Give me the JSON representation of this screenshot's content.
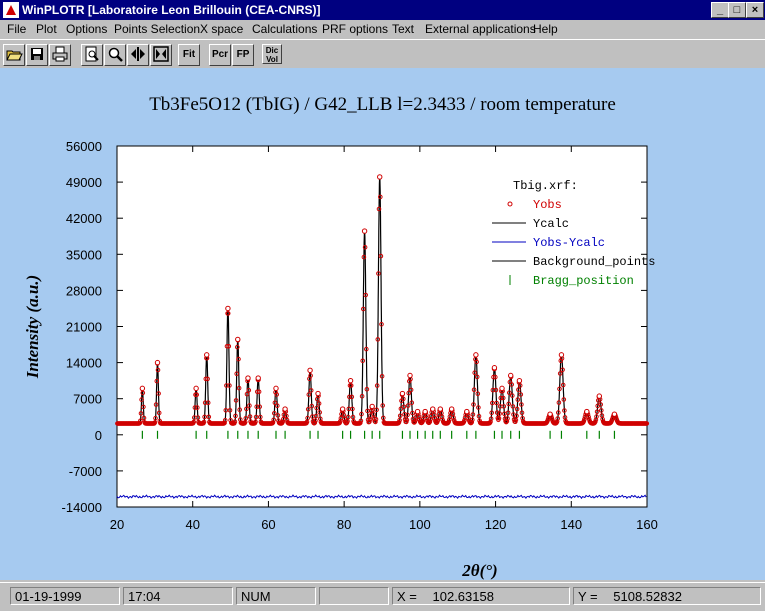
{
  "window": {
    "title": "WinPLOTR [Laboratoire Leon Brillouin (CEA-CNRS)]"
  },
  "menu": [
    "File",
    "Plot",
    "Options",
    "Points Selection",
    "X space",
    "Calculations",
    "PRF options",
    "Text",
    "External applications",
    "Help"
  ],
  "toolbar": {
    "buttons": [
      {
        "name": "open-icon",
        "label": ""
      },
      {
        "name": "save-icon",
        "label": ""
      },
      {
        "name": "print-icon",
        "label": ""
      },
      {
        "name": "zoom-page-icon",
        "label": ""
      },
      {
        "name": "zoom-icon",
        "label": ""
      },
      {
        "name": "move-horizontal-icon",
        "label": ""
      },
      {
        "name": "fit-window-icon",
        "label": ""
      },
      {
        "name": "fit-button",
        "label": "Fit"
      },
      {
        "name": "pcr-button",
        "label": "Pcr"
      },
      {
        "name": "fp-button",
        "label": "FP"
      },
      {
        "name": "dic-vol-button",
        "label": "Dic Vol"
      }
    ]
  },
  "colors": {
    "obs": "#d00000",
    "calc": "#000000",
    "diff": "#0000c0",
    "bragg": "#008000",
    "background": "#a6caf0"
  },
  "chart_data": {
    "type": "scatter",
    "title": "Tb3Fe5O12 (TbIG) / G42_LLB l=2.3433 / room temperature",
    "xlabel": "2θ(°)",
    "ylabel": "Intensity (a.u.)",
    "xlim": [
      20,
      160
    ],
    "ylim": [
      -14000,
      56000
    ],
    "xticks": [
      20,
      40,
      60,
      80,
      100,
      120,
      140,
      160
    ],
    "yticks": [
      56000,
      49000,
      42000,
      35000,
      28000,
      21000,
      14000,
      7000,
      0,
      -7000,
      -14000
    ],
    "legend": {
      "title": "Tbig.xrf:",
      "placement": "top-right",
      "entries": [
        {
          "label": "Yobs",
          "color": "#d00000",
          "marker": "circle"
        },
        {
          "label": "Ycalc",
          "color": "#000000",
          "marker": "line"
        },
        {
          "label": "Yobs-Ycalc",
          "color": "#0000c0",
          "marker": "line"
        },
        {
          "label": "Background_points",
          "color": "#000000",
          "marker": "line"
        },
        {
          "label": "Bragg_position",
          "color": "#008000",
          "marker": "tick"
        }
      ]
    },
    "background": 2200,
    "diff_offset": -12000,
    "bragg_row_y": 0,
    "peaks": [
      {
        "x": 26.7,
        "y": 9000
      },
      {
        "x": 30.7,
        "y": 14000
      },
      {
        "x": 40.9,
        "y": 9000
      },
      {
        "x": 43.7,
        "y": 15500
      },
      {
        "x": 49.3,
        "y": 24500
      },
      {
        "x": 51.9,
        "y": 18500
      },
      {
        "x": 54.6,
        "y": 11000
      },
      {
        "x": 57.3,
        "y": 11000
      },
      {
        "x": 62.0,
        "y": 9000
      },
      {
        "x": 64.4,
        "y": 5000
      },
      {
        "x": 71.0,
        "y": 12500
      },
      {
        "x": 73.1,
        "y": 8000
      },
      {
        "x": 79.6,
        "y": 5000
      },
      {
        "x": 81.7,
        "y": 10500
      },
      {
        "x": 85.4,
        "y": 39500
      },
      {
        "x": 87.4,
        "y": 5500
      },
      {
        "x": 89.4,
        "y": 50000
      },
      {
        "x": 95.4,
        "y": 8000
      },
      {
        "x": 97.4,
        "y": 11500
      },
      {
        "x": 99.4,
        "y": 4500
      },
      {
        "x": 101.4,
        "y": 4500
      },
      {
        "x": 103.4,
        "y": 5000
      },
      {
        "x": 105.4,
        "y": 5000
      },
      {
        "x": 108.4,
        "y": 5000
      },
      {
        "x": 112.4,
        "y": 4500
      },
      {
        "x": 114.8,
        "y": 15500
      },
      {
        "x": 119.7,
        "y": 13000
      },
      {
        "x": 121.7,
        "y": 9000
      },
      {
        "x": 124.0,
        "y": 11500
      },
      {
        "x": 126.3,
        "y": 10500
      },
      {
        "x": 134.4,
        "y": 4000
      },
      {
        "x": 137.4,
        "y": 15500
      },
      {
        "x": 144.1,
        "y": 4500
      },
      {
        "x": 147.4,
        "y": 7500
      },
      {
        "x": 151.4,
        "y": 4000
      }
    ],
    "bragg_positions": [
      26.7,
      30.7,
      40.9,
      43.7,
      49.3,
      51.9,
      54.6,
      57.3,
      62.0,
      64.4,
      71.0,
      73.1,
      79.6,
      81.7,
      85.4,
      87.4,
      89.4,
      95.4,
      97.4,
      99.4,
      101.4,
      103.4,
      105.4,
      108.4,
      112.4,
      114.8,
      119.7,
      121.7,
      124.0,
      126.3,
      134.4,
      137.4,
      144.1,
      147.4,
      151.4
    ]
  },
  "status": {
    "date": "01-19-1999",
    "time": "17:04",
    "num": "NUM",
    "x_label": "X =",
    "x_value": "102.63158",
    "y_label": "Y =",
    "y_value": "5108.52832"
  }
}
